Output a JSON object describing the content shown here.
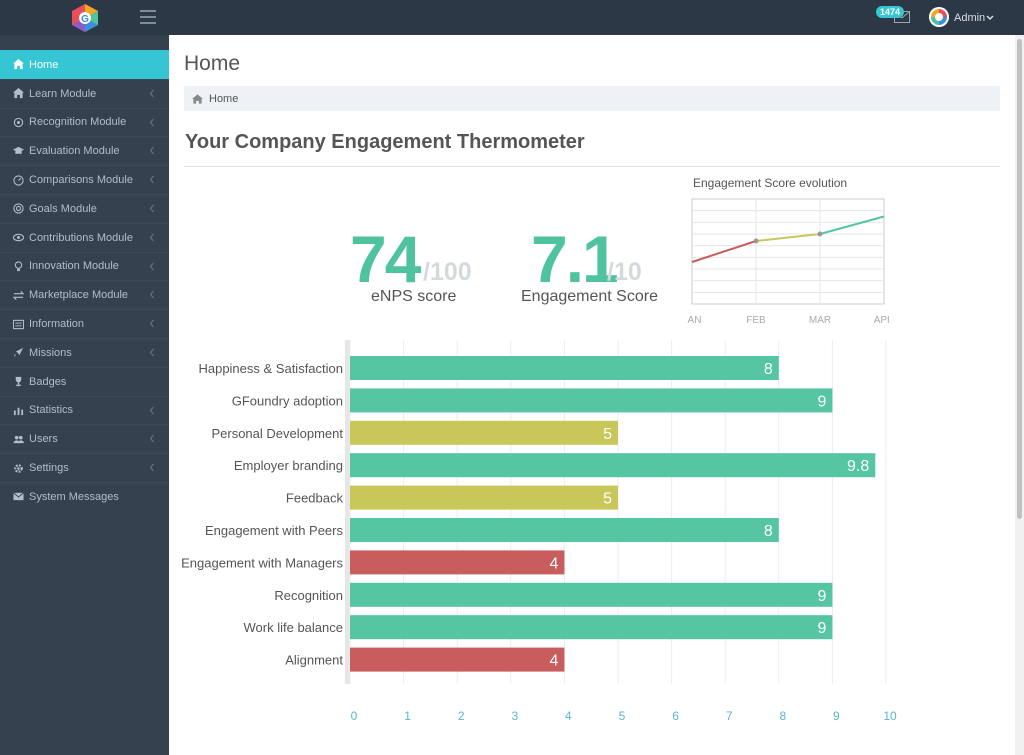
{
  "app": {
    "logo_letter": "G"
  },
  "topbar": {
    "mail_count": "1474",
    "user_name": "Admin",
    "icons": [
      "hamburger-icon",
      "mail-icon",
      "chevron-down-icon"
    ]
  },
  "sidebar": {
    "items": [
      {
        "label": "Home",
        "icon": "home-icon",
        "active": true,
        "has_arrow": false
      },
      {
        "label": "Learn Module",
        "icon": "home-icon",
        "has_arrow": true
      },
      {
        "label": "Recognition Module",
        "icon": "gear-icon",
        "has_arrow": true
      },
      {
        "label": "Evaluation Module",
        "icon": "graduation-cap-icon",
        "has_arrow": true
      },
      {
        "label": "Comparisons Module",
        "icon": "gauge-icon",
        "has_arrow": true
      },
      {
        "label": "Goals Module",
        "icon": "target-icon",
        "has_arrow": true
      },
      {
        "label": "Contributions Module",
        "icon": "eye-icon",
        "has_arrow": true
      },
      {
        "label": "Innovation Module",
        "icon": "lightbulb-icon",
        "has_arrow": true
      },
      {
        "label": "Marketplace Module",
        "icon": "exchange-icon",
        "has_arrow": true
      },
      {
        "label": "Information",
        "icon": "list-icon",
        "has_arrow": true
      },
      {
        "label": "Missions",
        "icon": "rocket-icon",
        "has_arrow": true
      },
      {
        "label": "Badges",
        "icon": "trophy-icon",
        "has_arrow": false
      },
      {
        "label": "Statistics",
        "icon": "bar-chart-icon",
        "has_arrow": true
      },
      {
        "label": "Users",
        "icon": "users-icon",
        "has_arrow": true
      },
      {
        "label": "Settings",
        "icon": "cog-icon",
        "has_arrow": true
      },
      {
        "label": "System Messages",
        "icon": "envelope-icon",
        "has_arrow": false
      }
    ]
  },
  "page": {
    "title": "Home",
    "breadcrumb": "Home",
    "section_title": "Your Company Engagement Thermometer"
  },
  "kpis": {
    "enps": {
      "value": "74",
      "denominator": "/100",
      "label": "eNPS score"
    },
    "engagement": {
      "value": "7.1",
      "denominator": "/10",
      "label": "Engagement Score"
    }
  },
  "colors": {
    "green": "#56c5a1",
    "yellow": "#c9c65a",
    "red": "#c95d5d",
    "accent": "#36c6d3",
    "sidebar": "#364150"
  },
  "chart_data": [
    {
      "type": "line",
      "title": "Engagement Score evolution",
      "categories": [
        "JAN",
        "FEB",
        "MAR",
        "APR"
      ],
      "series": [
        {
          "values": [
            6.2,
            6.8,
            7.0,
            7.5
          ]
        }
      ],
      "segment_colors": [
        "#c95d5d",
        "#c9c65a",
        "#56c5a1"
      ],
      "grid": true
    },
    {
      "type": "bar",
      "orientation": "horizontal",
      "categories": [
        "Happiness & Satisfaction",
        "GFoundry adoption",
        "Personal Development",
        "Employer branding",
        "Feedback",
        "Engagement with Peers",
        "Engagement with Managers",
        "Recognition",
        "Work life balance",
        "Alignment"
      ],
      "values": [
        8,
        9,
        5,
        9.8,
        5,
        8,
        4,
        9,
        9,
        4
      ],
      "value_labels": [
        "8",
        "9",
        "5",
        "9.8",
        "5",
        "8",
        "4",
        "9",
        "9",
        "4"
      ],
      "bar_colors": [
        "#56c5a1",
        "#56c5a1",
        "#c9c65a",
        "#56c5a1",
        "#c9c65a",
        "#56c5a1",
        "#c95d5d",
        "#56c5a1",
        "#56c5a1",
        "#c95d5d"
      ],
      "xlim": [
        0,
        10
      ],
      "x_ticks": [
        "0",
        "1",
        "2",
        "3",
        "4",
        "5",
        "6",
        "7",
        "8",
        "9",
        "10"
      ],
      "grid": true
    }
  ]
}
